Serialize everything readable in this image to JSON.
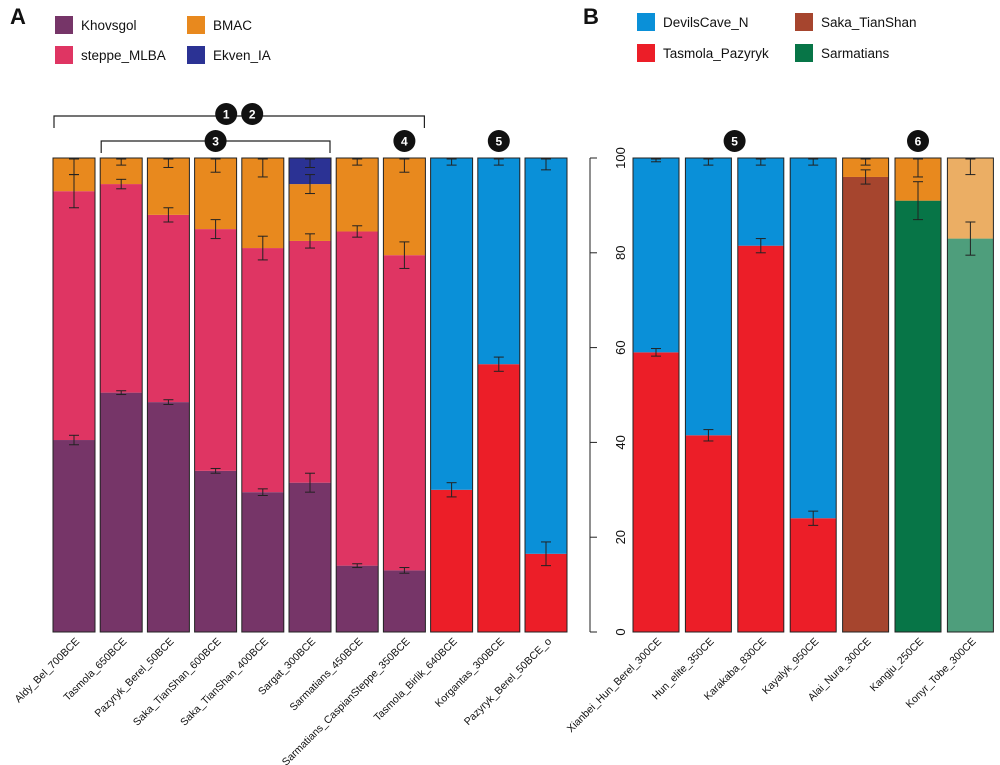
{
  "panels": {
    "A": {
      "label": "A"
    },
    "B": {
      "label": "B"
    }
  },
  "chart_data": [
    {
      "type": "bar",
      "stacked": true,
      "panel": "A",
      "title": "",
      "xlabel": "",
      "ylabel": "",
      "ylim": [
        0,
        100
      ],
      "legend": {
        "placement": "top",
        "entries": [
          {
            "name": "Khovsgol",
            "color": "#763568"
          },
          {
            "name": "BMAC",
            "color": "#E8891E"
          },
          {
            "name": "steppe_MLBA",
            "color": "#DF3563"
          },
          {
            "name": "Ekven_IA",
            "color": "#2B3294"
          }
        ]
      },
      "categories": [
        "Aldy_Bel_700BCE",
        "Tasmola_650BCE",
        "Pazyryk_Berel_50BCE",
        "Saka_TianShan_600BCE",
        "Saka_TianShan_400BCE",
        "Sargat_300BCE",
        "Sarmatians_450BCE",
        "Sarmatians_CaspianSteppe_350BCE",
        "Tasmola_Birlik_640BCE",
        "Korgantas_300BCE",
        "Pazyryk_Berel_50BCE_o"
      ],
      "bars": [
        {
          "segments": [
            {
              "name": "Khovsgol",
              "value": 40.5,
              "err": 1
            },
            {
              "name": "steppe_MLBA",
              "value": 52.5,
              "err": 3.5
            },
            {
              "name": "BMAC",
              "value": 7,
              "err": 3.5
            }
          ]
        },
        {
          "segments": [
            {
              "name": "Khovsgol",
              "value": 50.5,
              "err": 0.4
            },
            {
              "name": "steppe_MLBA",
              "value": 44,
              "err": 1
            },
            {
              "name": "BMAC",
              "value": 5.5,
              "err": 1.5
            }
          ]
        },
        {
          "segments": [
            {
              "name": "Khovsgol",
              "value": 48.5,
              "err": 0.5
            },
            {
              "name": "steppe_MLBA",
              "value": 39.5,
              "err": 1.5
            },
            {
              "name": "BMAC",
              "value": 12,
              "err": 2
            }
          ]
        },
        {
          "segments": [
            {
              "name": "Khovsgol",
              "value": 34,
              "err": 0.5
            },
            {
              "name": "steppe_MLBA",
              "value": 51,
              "err": 2
            },
            {
              "name": "BMAC",
              "value": 15,
              "err": 3
            }
          ]
        },
        {
          "segments": [
            {
              "name": "Khovsgol",
              "value": 29.5,
              "err": 0.7
            },
            {
              "name": "steppe_MLBA",
              "value": 51.5,
              "err": 2.5
            },
            {
              "name": "BMAC",
              "value": 19,
              "err": 4
            }
          ]
        },
        {
          "segments": [
            {
              "name": "Khovsgol",
              "value": 31.5,
              "err": 2
            },
            {
              "name": "steppe_MLBA",
              "value": 51,
              "err": 1.5
            },
            {
              "name": "BMAC",
              "value": 12,
              "err": 2
            },
            {
              "name": "Ekven_IA",
              "value": 5.5,
              "err": 2
            }
          ]
        },
        {
          "segments": [
            {
              "name": "Khovsgol",
              "value": 14,
              "err": 0.4
            },
            {
              "name": "steppe_MLBA",
              "value": 70.5,
              "err": 1.2
            },
            {
              "name": "BMAC",
              "value": 15.5,
              "err": 1.5
            }
          ]
        },
        {
          "segments": [
            {
              "name": "Khovsgol",
              "value": 13,
              "err": 0.6
            },
            {
              "name": "steppe_MLBA",
              "value": 66.5,
              "err": 2.8
            },
            {
              "name": "BMAC",
              "value": 20.5,
              "err": 3
            }
          ]
        },
        {
          "segments": [
            {
              "name": "Tasmola_Pazyryk",
              "value": 30,
              "err": 1.5
            },
            {
              "name": "DevilsCave_N",
              "value": 70,
              "err": 1.5
            }
          ]
        },
        {
          "segments": [
            {
              "name": "Tasmola_Pazyryk",
              "value": 56.5,
              "err": 1.5
            },
            {
              "name": "DevilsCave_N",
              "value": 43.5,
              "err": 1.5
            }
          ]
        },
        {
          "segments": [
            {
              "name": "Tasmola_Pazyryk",
              "value": 16.5,
              "err": 2.5
            },
            {
              "name": "DevilsCave_N",
              "value": 83.5,
              "err": 2.5
            }
          ]
        }
      ],
      "groups": [
        {
          "badges": [
            "1",
            "2"
          ],
          "from": 0,
          "to": 7
        },
        {
          "badges": [
            "3"
          ],
          "from": 1,
          "to": 5
        },
        {
          "badges": [
            "4"
          ],
          "at": 7
        },
        {
          "badges": [
            "5"
          ],
          "at": 9
        }
      ]
    },
    {
      "type": "bar",
      "stacked": true,
      "panel": "B",
      "title": "",
      "xlabel": "",
      "ylabel": "",
      "ylim": [
        0,
        100
      ],
      "yticks": [
        "0",
        "20",
        "40",
        "60",
        "80",
        "100"
      ],
      "legend": {
        "placement": "top",
        "entries": [
          {
            "name": "DevilsCave_N",
            "color": "#0A90D8"
          },
          {
            "name": "Saka_TianShan",
            "color": "#A6452E"
          },
          {
            "name": "Tasmola_Pazyryk",
            "color": "#EC1E28"
          },
          {
            "name": "Sarmatians",
            "color": "#077547"
          }
        ]
      },
      "categories": [
        "Xianbei_Hun_Berel_300CE",
        "Hun_elite_350CE",
        "Karakaba_830CE",
        "Kayalyk_950CE",
        "Alai_Nura_300CE",
        "Kangju_250CE",
        "Konyr_Tobe_300CE"
      ],
      "bars": [
        {
          "segments": [
            {
              "name": "Tasmola_Pazyryk",
              "value": 59,
              "err": 0.8
            },
            {
              "name": "DevilsCave_N",
              "value": 41,
              "err": 0.8
            }
          ]
        },
        {
          "segments": [
            {
              "name": "Tasmola_Pazyryk",
              "value": 41.5,
              "err": 1.2
            },
            {
              "name": "DevilsCave_N",
              "value": 58.5,
              "err": 1.5
            }
          ]
        },
        {
          "segments": [
            {
              "name": "Tasmola_Pazyryk",
              "value": 81.5,
              "err": 1.5
            },
            {
              "name": "DevilsCave_N",
              "value": 18.5,
              "err": 1.5
            }
          ]
        },
        {
          "segments": [
            {
              "name": "Tasmola_Pazyryk",
              "value": 24,
              "err": 1.5
            },
            {
              "name": "DevilsCave_N",
              "value": 76,
              "err": 1.5
            }
          ]
        },
        {
          "segments": [
            {
              "name": "Saka_TianShan",
              "value": 96,
              "err": 1.5
            },
            {
              "name": "BMAC",
              "value": 4,
              "err": 1.5
            }
          ]
        },
        {
          "segments": [
            {
              "name": "Sarmatians",
              "value": 91,
              "err": 4
            },
            {
              "name": "BMAC",
              "value": 9,
              "err": 4
            }
          ]
        },
        {
          "segments": [
            {
              "name": "Sarmatians",
              "value": 83,
              "err": 3.5,
              "color": "#4E9E7C"
            },
            {
              "name": "BMAC",
              "value": 17,
              "err": 3.5,
              "color": "#EBAE64"
            }
          ]
        }
      ],
      "groups": [
        {
          "badges": [
            "5"
          ],
          "at": 1.5
        },
        {
          "badges": [
            "6"
          ],
          "at": 5
        }
      ]
    }
  ],
  "colors": {
    "Khovsgol": "#763568",
    "steppe_MLBA": "#DF3563",
    "BMAC": "#E8891E",
    "Ekven_IA": "#2B3294",
    "DevilsCave_N": "#0A90D8",
    "Tasmola_Pazyryk": "#EC1E28",
    "Saka_TianShan": "#A6452E",
    "Sarmatians": "#077547"
  }
}
